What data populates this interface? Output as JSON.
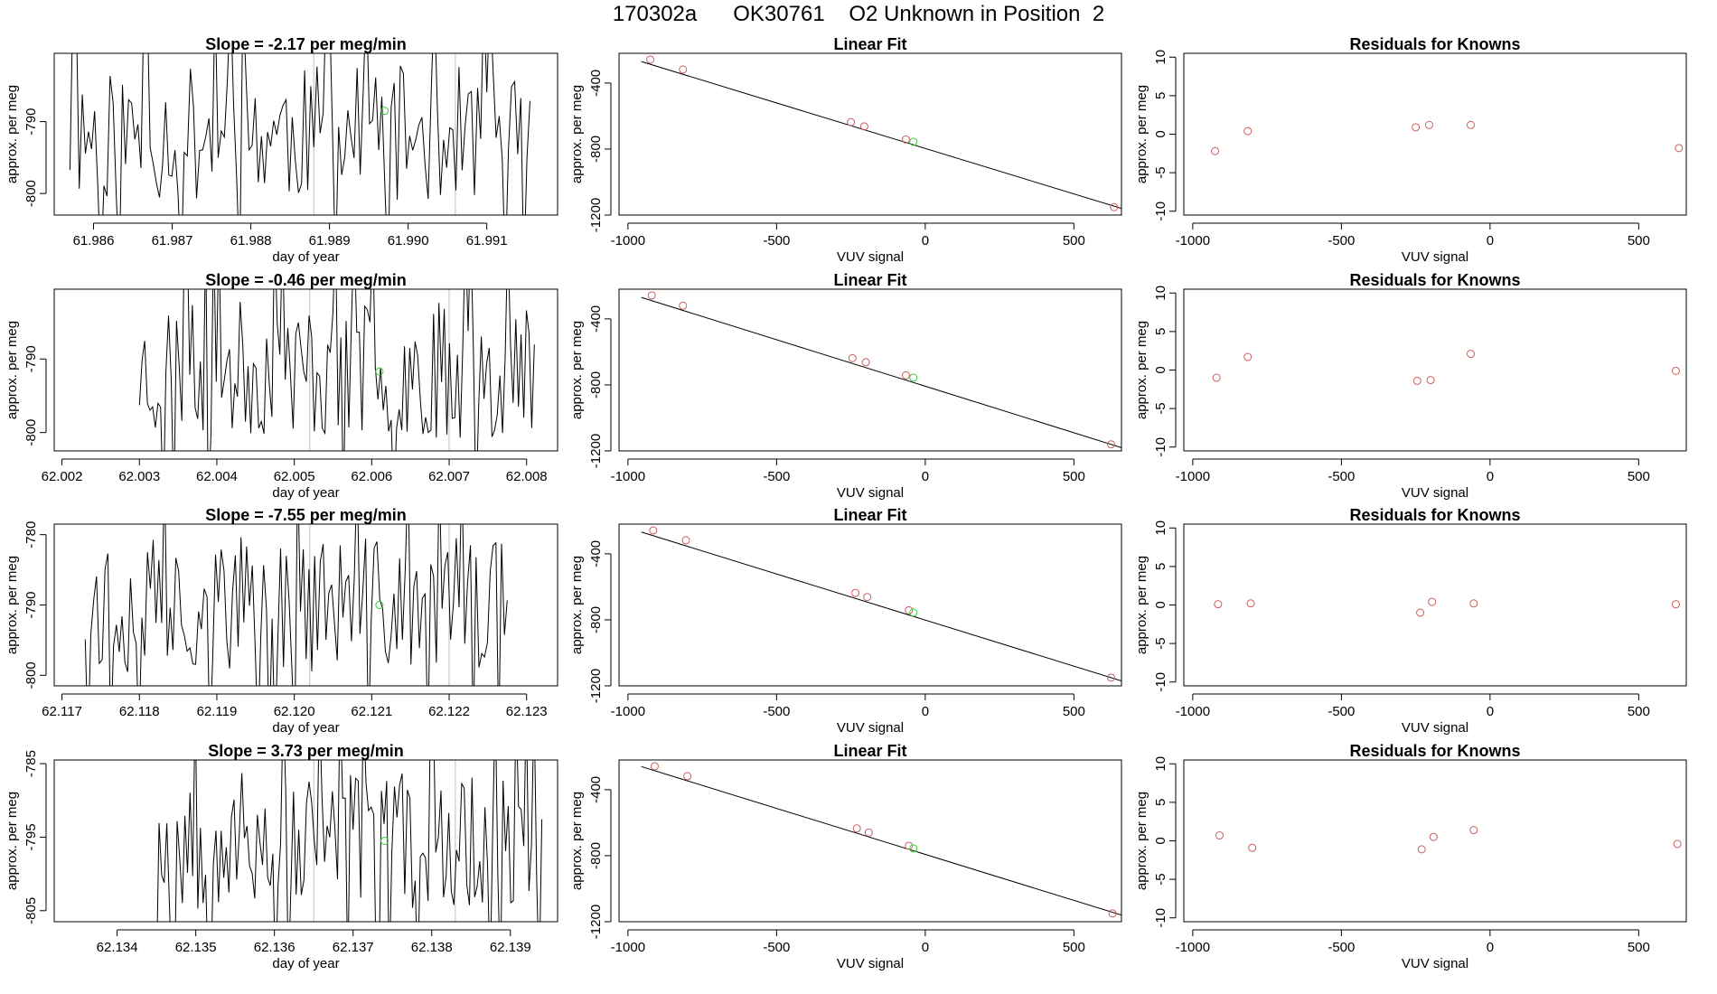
{
  "page_title": "170302a      OK30761    O2 Unknown in Position  2",
  "colors": {
    "known": "#CD5C5C",
    "unknown": "#32CD32",
    "line": "#000000",
    "vline": "#BEBEBE"
  },
  "chart_data": [
    {
      "row": 0,
      "timeseries": {
        "type": "line",
        "title": "Slope =  -2.17  per meg/min",
        "xlabel": "day of year",
        "ylabel": "approx. per meg",
        "xlim": [
          61.9855,
          61.9919
        ],
        "ylim": [
          -803,
          -780.5
        ],
        "xticks": [
          "61.986",
          "61.987",
          "61.988",
          "61.989",
          "61.990",
          "61.991"
        ],
        "yticks": [
          "-790",
          "-800"
        ],
        "vlines": [
          61.9888,
          61.9906
        ],
        "unknown_point": {
          "x": 61.9897,
          "y": -788.5
        },
        "x_start": 61.9857,
        "x_end": 61.99155,
        "n": 150,
        "seed": 11
      },
      "fit": {
        "type": "line",
        "title": "Linear Fit",
        "xlabel": "VUV signal",
        "ylabel": "approx. per meg",
        "xlim": [
          -1030,
          660
        ],
        "ylim": [
          -1200,
          -220
        ],
        "xticks": [
          "-1000",
          "-500",
          "0",
          "500"
        ],
        "yticks": [
          "-400",
          "-800",
          "-1200"
        ],
        "line": [
          [
            -955,
            -270
          ],
          [
            660,
            -1160
          ]
        ],
        "known_x": [
          -925,
          -815,
          -250,
          -205,
          -65,
          635
        ],
        "known_y": [
          -258,
          -318,
          -637,
          -663,
          -742,
          -1152
        ],
        "unknown_x": -40,
        "unknown_y": -756
      },
      "residuals": {
        "type": "scatter",
        "title": "Residuals for Knowns",
        "xlabel": "VUV signal",
        "ylabel": "approx. per meg",
        "xlim": [
          -1030,
          660
        ],
        "ylim": [
          -10.5,
          10.5
        ],
        "xticks": [
          "-1000",
          "-500",
          "0",
          "500"
        ],
        "yticks": [
          "-10",
          "-5",
          "0",
          "5",
          "10"
        ],
        "x": [
          -925,
          -815,
          -250,
          -205,
          -65,
          635
        ],
        "y": [
          -2.2,
          0.4,
          0.9,
          1.2,
          1.2,
          -1.8
        ]
      }
    },
    {
      "row": 1,
      "timeseries": {
        "type": "line",
        "title": "Slope =  -0.46  per meg/min",
        "xlabel": "day of year",
        "ylabel": "approx. per meg",
        "xlim": [
          62.0019,
          62.0084
        ],
        "ylim": [
          -802.5,
          -780.5
        ],
        "xticks": [
          "62.002",
          "62.003",
          "62.004",
          "62.005",
          "62.006",
          "62.007",
          "62.008"
        ],
        "yticks": [
          "-790",
          "-800"
        ],
        "vlines": [
          62.0052,
          62.007
        ],
        "unknown_point": {
          "x": 62.0061,
          "y": -791.7
        },
        "x_start": 62.003,
        "x_end": 62.0081,
        "n": 150,
        "seed": 23
      },
      "fit": {
        "type": "line",
        "title": "Linear Fit",
        "xlabel": "VUV signal",
        "ylabel": "approx. per meg",
        "xlim": [
          -1030,
          660
        ],
        "ylim": [
          -1200,
          -220
        ],
        "xticks": [
          "-1000",
          "-500",
          "0",
          "500"
        ],
        "yticks": [
          "-400",
          "-800",
          "-1200"
        ],
        "line": [
          [
            -955,
            -270
          ],
          [
            660,
            -1180
          ]
        ],
        "known_x": [
          -920,
          -815,
          -245,
          -200,
          -65,
          625
        ],
        "known_y": [
          -258,
          -320,
          -638,
          -663,
          -742,
          -1160
        ],
        "unknown_x": -40,
        "unknown_y": -756
      },
      "residuals": {
        "type": "scatter",
        "title": "Residuals for Knowns",
        "xlabel": "VUV signal",
        "ylabel": "approx. per meg",
        "xlim": [
          -1030,
          660
        ],
        "ylim": [
          -10.5,
          10.5
        ],
        "xticks": [
          "-1000",
          "-500",
          "0",
          "500"
        ],
        "yticks": [
          "-10",
          "-5",
          "0",
          "5",
          "10"
        ],
        "x": [
          -920,
          -815,
          -245,
          -200,
          -65,
          625
        ],
        "y": [
          -1.0,
          1.7,
          -1.4,
          -1.3,
          2.1,
          -0.1
        ]
      }
    },
    {
      "row": 2,
      "timeseries": {
        "type": "line",
        "title": "Slope =  -7.55  per meg/min",
        "xlabel": "day of year",
        "ylabel": "approx. per meg",
        "xlim": [
          62.1169,
          62.1234
        ],
        "ylim": [
          -801.5,
          -778.5
        ],
        "xticks": [
          "62.117",
          "62.118",
          "62.119",
          "62.120",
          "62.121",
          "62.122",
          "62.123"
        ],
        "yticks": [
          "-780",
          "-790",
          "-800"
        ],
        "vlines": [
          62.1202,
          62.122
        ],
        "unknown_point": {
          "x": 62.1211,
          "y": -790.0
        },
        "x_start": 62.1173,
        "x_end": 62.12275,
        "n": 150,
        "seed": 37
      },
      "fit": {
        "type": "line",
        "title": "Linear Fit",
        "xlabel": "VUV signal",
        "ylabel": "approx. per meg",
        "xlim": [
          -1030,
          660
        ],
        "ylim": [
          -1200,
          -220
        ],
        "xticks": [
          "-1000",
          "-500",
          "0",
          "500"
        ],
        "yticks": [
          "-400",
          "-800",
          "-1200"
        ],
        "line": [
          [
            -955,
            -268
          ],
          [
            660,
            -1170
          ]
        ],
        "known_x": [
          -915,
          -805,
          -235,
          -195,
          -55,
          625
        ],
        "known_y": [
          -258,
          -318,
          -637,
          -662,
          -742,
          -1150
        ],
        "unknown_x": -40,
        "unknown_y": -756
      },
      "residuals": {
        "type": "scatter",
        "title": "Residuals for Knowns",
        "xlabel": "VUV signal",
        "ylabel": "approx. per meg",
        "xlim": [
          -1030,
          660
        ],
        "ylim": [
          -10.5,
          10.5
        ],
        "xticks": [
          "-1000",
          "-500",
          "0",
          "500"
        ],
        "yticks": [
          "-10",
          "-5",
          "0",
          "5",
          "10"
        ],
        "x": [
          -915,
          -805,
          -235,
          -195,
          -55,
          625
        ],
        "y": [
          0.1,
          0.2,
          -1.0,
          0.4,
          0.2,
          0.1
        ]
      }
    },
    {
      "row": 3,
      "timeseries": {
        "type": "line",
        "title": "Slope =  3.73  per meg/min",
        "xlabel": "day of year",
        "ylabel": "approx. per meg",
        "xlim": [
          62.1332,
          62.1396
        ],
        "ylim": [
          -806.5,
          -784.5
        ],
        "xticks": [
          "62.134",
          "62.135",
          "62.136",
          "62.137",
          "62.138",
          "62.139"
        ],
        "yticks": [
          "-785",
          "-795",
          "-805"
        ],
        "vlines": [
          62.1365,
          62.1383
        ],
        "unknown_point": {
          "x": 62.1374,
          "y": -795.5
        },
        "x_start": 62.1345,
        "x_end": 62.1394,
        "n": 150,
        "seed": 53
      },
      "fit": {
        "type": "line",
        "title": "Linear Fit",
        "xlabel": "VUV signal",
        "ylabel": "approx. per meg",
        "xlim": [
          -1030,
          660
        ],
        "ylim": [
          -1200,
          -220
        ],
        "xticks": [
          "-1000",
          "-500",
          "0",
          "500"
        ],
        "yticks": [
          "-400",
          "-800",
          "-1200"
        ],
        "line": [
          [
            -955,
            -260
          ],
          [
            660,
            -1160
          ]
        ],
        "known_x": [
          -910,
          -800,
          -230,
          -190,
          -55,
          630
        ],
        "known_y": [
          -258,
          -318,
          -635,
          -660,
          -740,
          -1150
        ],
        "unknown_x": -40,
        "unknown_y": -756
      },
      "residuals": {
        "type": "scatter",
        "title": "Residuals for Knowns",
        "xlabel": "VUV signal",
        "ylabel": "approx. per meg",
        "xlim": [
          -1030,
          660
        ],
        "ylim": [
          -10.5,
          10.5
        ],
        "xticks": [
          "-1000",
          "-500",
          "0",
          "500"
        ],
        "yticks": [
          "-10",
          "-5",
          "0",
          "5",
          "10"
        ],
        "x": [
          -910,
          -800,
          -230,
          -190,
          -55,
          630
        ],
        "y": [
          0.7,
          -0.9,
          -1.1,
          0.5,
          1.4,
          -0.4
        ]
      }
    }
  ]
}
